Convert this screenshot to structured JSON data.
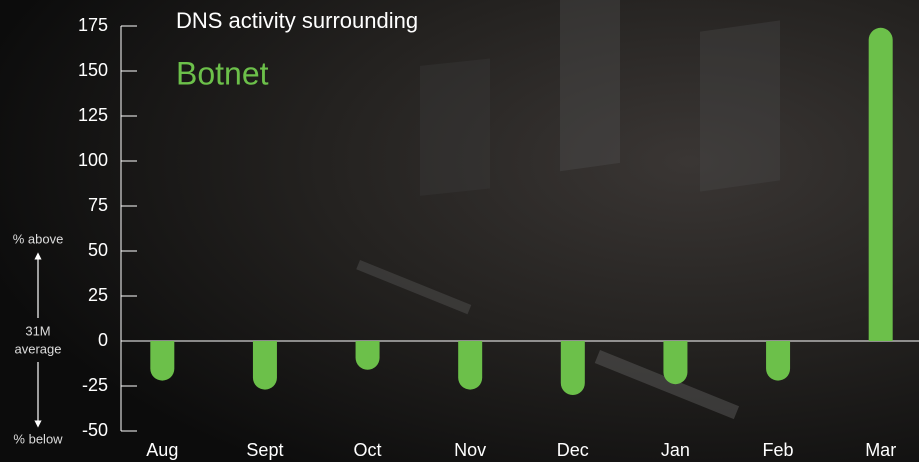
{
  "chart_data": {
    "type": "bar",
    "title": "DNS activity surrounding",
    "subtitle": "Botnet",
    "annotations": [
      "% above",
      "31M",
      "average",
      "% below"
    ],
    "categories": [
      "Aug",
      "Sept",
      "Oct",
      "Nov",
      "Dec",
      "Jan",
      "Feb",
      "Mar"
    ],
    "values": [
      -22,
      -27,
      -16,
      -27,
      -30,
      -24,
      -22,
      174
    ],
    "color": "#6cc04a",
    "ylim": [
      -50,
      175
    ],
    "yticks": [
      -50,
      -25,
      0,
      25,
      50,
      75,
      100,
      125,
      150,
      175
    ],
    "grid": false
  }
}
